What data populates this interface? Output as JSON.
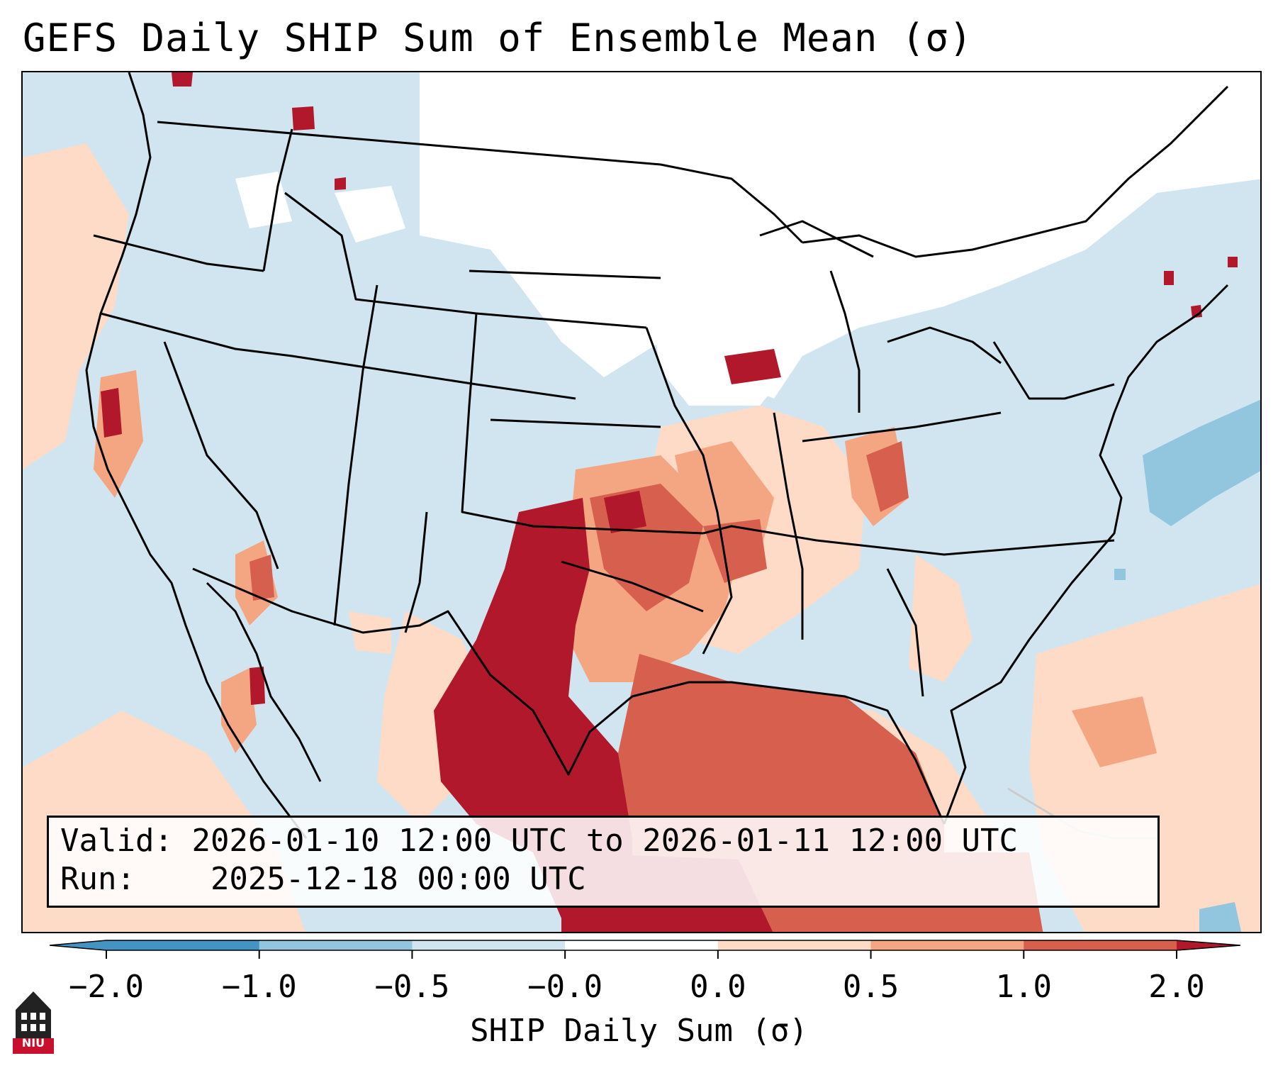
{
  "title": "GEFS Daily SHIP Sum of Ensemble Mean (σ)",
  "info": {
    "valid_label": "Valid:",
    "valid_value": "2026-01-10 12:00 UTC to 2026-01-11 12:00 UTC",
    "run_label": "Run:",
    "run_value": "2025-12-18 00:00 UTC"
  },
  "colorbar": {
    "label": "SHIP Daily Sum (σ)",
    "ticks": [
      "−2.0",
      "−1.0",
      "−0.5",
      "−0.0",
      "0.0",
      "0.5",
      "1.0",
      "2.0"
    ],
    "colors": [
      "#4393c3",
      "#92c5de",
      "#d1e5f0",
      "#ffffff",
      "#fddbc7",
      "#f4a582",
      "#d6604d",
      "#b2182b"
    ]
  },
  "logo": {
    "text": "NIU"
  },
  "legend_colors": {
    "strong_positive": "#b2182b",
    "positive": "#d6604d",
    "moderate_positive": "#f4a582",
    "weak_positive": "#fddbc7",
    "neutral": "#ffffff",
    "weak_negative": "#d1e5f0",
    "negative": "#92c5de",
    "strong_negative": "#4393c3"
  }
}
